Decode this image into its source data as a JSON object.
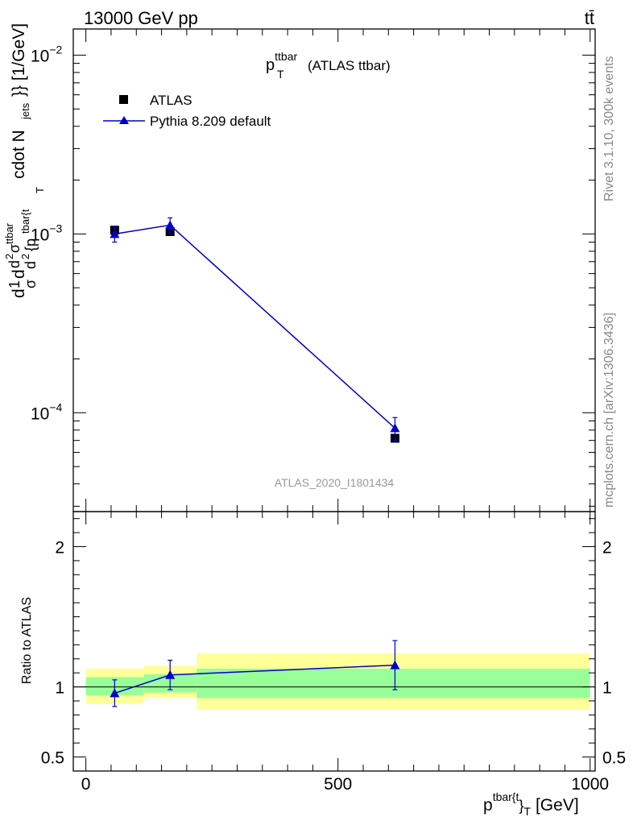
{
  "header": {
    "energy": "13000 GeV pp",
    "process": "tt̄"
  },
  "side_labels": {
    "rivet": "Rivet 3.1.10,  300k events",
    "mcplots": "mcplots.cern.ch [arXiv:1306.3436]"
  },
  "watermark": "ATLAS_2020_I1801434",
  "chart_data": [
    {
      "type": "scatter",
      "panel": "main",
      "title_main": "p",
      "title_sup": "ttbar",
      "title_sub": "T",
      "title_rest": "(ATLAS ttbar)",
      "ylabel": "d1dd2σttbard2{p_T^{tbar{t}} cdot N_jets}} [1/GeV]",
      "ylabel_parts": {
        "p1": "d",
        "p2": "1",
        "p3": "σ",
        "p4": "d",
        "p5": "d",
        "p6": "2",
        "p7": "σ",
        "p8": "ttbar",
        "p9": "d",
        "p10": "2",
        "p11": "{p",
        "p12": "tbar{t",
        "p13": "T",
        "p14": "cdot N",
        "p15": "jets",
        "p16": "}} [1/GeV]"
      },
      "yscale": "log",
      "ylim": [
        2.8e-05,
        0.014
      ],
      "xlim": [
        -25,
        1010
      ],
      "y_ticks": [
        {
          "value": 0.01,
          "base": "10",
          "exp": "−2"
        },
        {
          "value": 0.001,
          "base": "10",
          "exp": "−3"
        },
        {
          "value": 0.0001,
          "base": "10",
          "exp": "−4"
        }
      ],
      "legend_position": "top-left",
      "series": [
        {
          "name": "ATLAS",
          "marker": "square",
          "color": "#000000",
          "x": [
            57,
            167,
            613
          ],
          "y": [
            0.00105,
            0.00103,
            7.2e-05
          ],
          "yerr": [
            4e-05,
            4e-05,
            3e-06
          ]
        },
        {
          "name": "Pythia 8.209 default",
          "marker": "triangle",
          "color": "#0000cc",
          "x": [
            57,
            167,
            613
          ],
          "y": [
            0.001,
            0.00112,
            8.2e-05
          ],
          "yerr": [
            0.0001,
            0.00011,
            1.2e-05
          ]
        }
      ]
    },
    {
      "type": "scatter",
      "panel": "ratio",
      "ylabel": "Ratio to ATLAS",
      "xlabel": "p",
      "xlabel_sup": "tbar{t",
      "xlabel_close": "}",
      "xlabel_sub": "T",
      "xlabel_unit": "[GeV]",
      "ylim": [
        0.4,
        2.25
      ],
      "xlim": [
        -25,
        1010
      ],
      "x_ticks": [
        {
          "value": 0,
          "label": "0"
        },
        {
          "value": 500,
          "label": "500"
        },
        {
          "value": 1000,
          "label": "1000"
        }
      ],
      "y_ticks": [
        {
          "value": 0.5,
          "label": "0.5"
        },
        {
          "value": 1,
          "label": "1"
        },
        {
          "value": 2,
          "label": "2"
        }
      ],
      "bands": [
        {
          "x0": 0,
          "x1": 115,
          "inner": [
            0.94,
            1.07
          ],
          "outer": [
            0.88,
            1.13
          ]
        },
        {
          "x0": 115,
          "x1": 220,
          "inner": [
            0.96,
            1.09
          ],
          "outer": [
            0.92,
            1.15
          ]
        },
        {
          "x0": 220,
          "x1": 1000,
          "inner": [
            0.92,
            1.13
          ],
          "outer": [
            0.84,
            1.24
          ]
        }
      ],
      "band_colors": {
        "inner": "#99ff99",
        "outer": "#ffff99"
      },
      "series": [
        {
          "name": "Pythia 8.209 default",
          "color": "#0000cc",
          "x": [
            57,
            167,
            613
          ],
          "y": [
            0.955,
            1.085,
            1.155
          ],
          "yerr": [
            0.095,
            0.105,
            0.175
          ]
        }
      ]
    }
  ]
}
